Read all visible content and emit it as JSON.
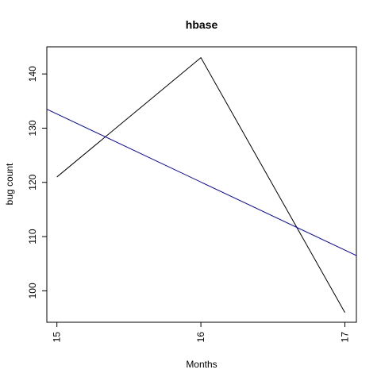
{
  "chart_data": {
    "type": "line",
    "title": "hbase",
    "xlabel": "Months",
    "ylabel": "bug count",
    "xlim": [
      14.93,
      17.08
    ],
    "ylim": [
      94.2,
      145
    ],
    "x_ticks": [
      15,
      16,
      17
    ],
    "x_tick_labels": [
      "15",
      "16",
      "17"
    ],
    "y_ticks": [
      100,
      110,
      120,
      130,
      140
    ],
    "y_tick_labels": [
      "100",
      "110",
      "120",
      "130",
      "140"
    ],
    "grid": false,
    "legend": "none",
    "series": [
      {
        "color": "#000000",
        "x": [
          15,
          16,
          17
        ],
        "values": [
          121,
          143,
          96
        ]
      },
      {
        "color": "#0000cc",
        "kind": "linear-fit",
        "x": [
          14.93,
          17.08
        ],
        "values": [
          133.5,
          106.5
        ]
      }
    ]
  }
}
